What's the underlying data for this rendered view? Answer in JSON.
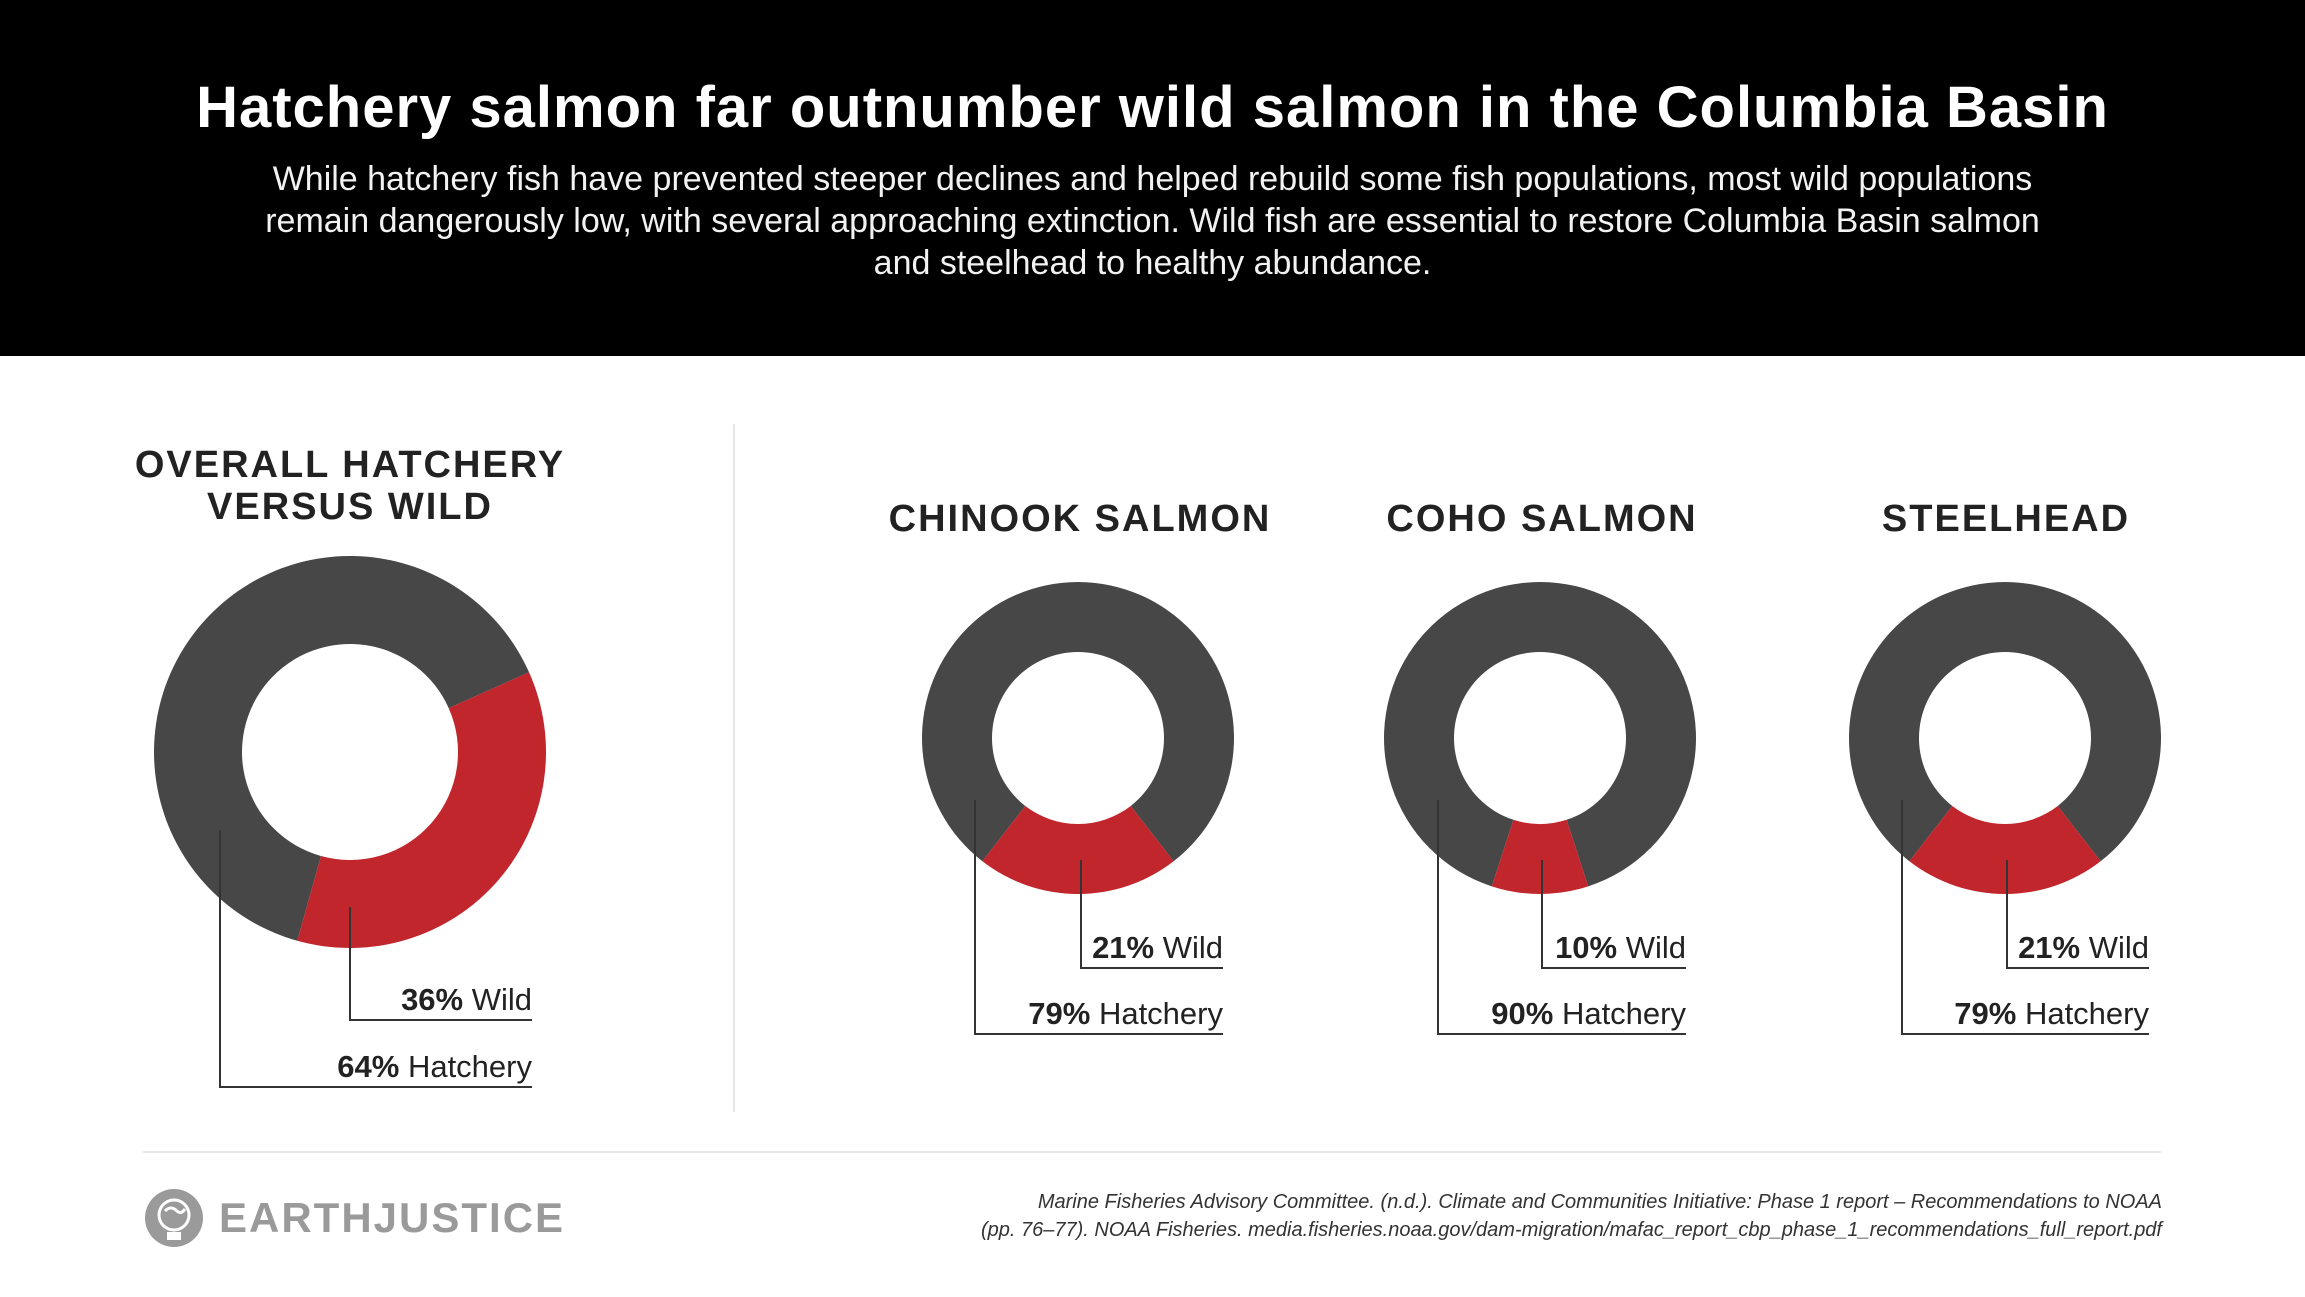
{
  "header": {
    "title": "Hatchery salmon far outnumber wild salmon in the Columbia Basin",
    "subtitle": "While hatchery fish have prevented steeper declines and helped rebuild some fish populations, most wild populations remain dangerously low, with several approaching extinction. Wild fish are essential to restore Columbia Basin salmon and steelhead to healthy abundance."
  },
  "colors": {
    "hatchery": "#474747",
    "wild": "#c1262d",
    "header_bg": "#000000"
  },
  "chart_data": [
    {
      "type": "pie",
      "title_lines": [
        "OVERALL HATCHERY",
        "VERSUS WILD"
      ],
      "slices": [
        {
          "name": "Wild",
          "value": 36,
          "label_pct": "36%",
          "label_text": " Wild"
        },
        {
          "name": "Hatchery",
          "value": 64,
          "label_pct": "64%",
          "label_text": " Hatchery"
        }
      ]
    },
    {
      "type": "pie",
      "title_lines": [
        "CHINOOK SALMON"
      ],
      "slices": [
        {
          "name": "Wild",
          "value": 21,
          "label_pct": "21%",
          "label_text": " Wild"
        },
        {
          "name": "Hatchery",
          "value": 79,
          "label_pct": "79%",
          "label_text": " Hatchery"
        }
      ]
    },
    {
      "type": "pie",
      "title_lines": [
        "COHO SALMON"
      ],
      "slices": [
        {
          "name": "Wild",
          "value": 10,
          "label_pct": "10%",
          "label_text": " Wild"
        },
        {
          "name": "Hatchery",
          "value": 90,
          "label_pct": "90%",
          "label_text": " Hatchery"
        }
      ]
    },
    {
      "type": "pie",
      "title_lines": [
        "STEELHEAD"
      ],
      "slices": [
        {
          "name": "Wild",
          "value": 21,
          "label_pct": "21%",
          "label_text": " Wild"
        },
        {
          "name": "Hatchery",
          "value": 79,
          "label_pct": "79%",
          "label_text": " Hatchery"
        }
      ]
    }
  ],
  "footer": {
    "logo_text": "EARTHJUSTICE",
    "logo_icon": "globe-icon",
    "source_line1": "Marine Fisheries Advisory Committee. (n.d.). Climate and Communities Initiative: Phase 1 report – Recommendations to NOAA",
    "source_line2": "(pp. 76–77). NOAA Fisheries. media.fisheries.noaa.gov/dam-migration/mafac_report_cbp_phase_1_recommendations_full_report.pdf"
  }
}
